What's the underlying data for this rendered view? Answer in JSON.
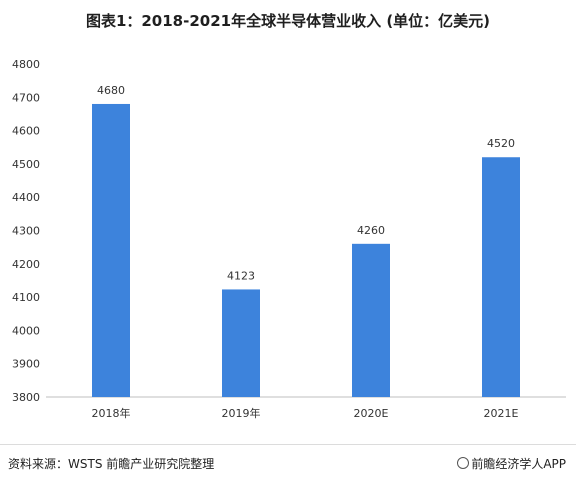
{
  "title": "图表1：2018-2021年全球半导体营业收入 (单位：亿美元)",
  "footer": {
    "source": "资料来源：WSTS 前瞻产业研究院整理",
    "brand": "前瞻经济学人APP",
    "brand_icon": "logo-icon"
  },
  "colors": {
    "bar": "#3d83dc",
    "axis": "#bfbfbf",
    "text": "#333333"
  },
  "chart_data": {
    "type": "bar",
    "title": "图表1：2018-2021年全球半导体营业收入 (单位：亿美元)",
    "categories": [
      "2018年",
      "2019年",
      "2020E",
      "2021E"
    ],
    "values": [
      4680,
      4123,
      4260,
      4520
    ],
    "data_labels": [
      "4680",
      "4123",
      "4260",
      "4520"
    ],
    "yticks": [
      3800,
      3900,
      4000,
      4100,
      4200,
      4300,
      4400,
      4500,
      4600,
      4700,
      4800
    ],
    "ylim": [
      3800,
      4800
    ],
    "xlabel": "",
    "ylabel": "",
    "grid": false,
    "legend": "none"
  }
}
